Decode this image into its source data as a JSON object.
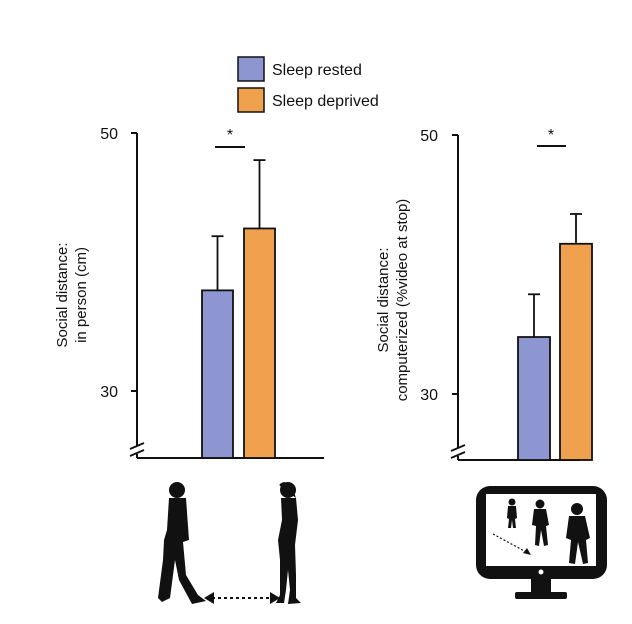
{
  "colors": {
    "sleep_rested": "#8E96D1",
    "sleep_deprived": "#F0A14D",
    "axis": "#111111",
    "icon": "#111111"
  },
  "legend": {
    "items": [
      {
        "label": "Sleep rested",
        "color": "#8E96D1"
      },
      {
        "label": "Sleep deprived",
        "color": "#F0A14D"
      }
    ],
    "placement": "top-center"
  },
  "chart_data": [
    {
      "type": "bar",
      "ylabel_line1": "Social distance:",
      "ylabel_line2": "in person (cm)",
      "yticks": [
        {
          "value": 50,
          "label": "50"
        },
        {
          "value": 30,
          "label": "30"
        }
      ],
      "ylim": [
        25,
        50
      ],
      "axis_break": true,
      "series": [
        {
          "name": "Sleep rested",
          "value": 37.8,
          "error": 4.2,
          "color": "#8E96D1"
        },
        {
          "name": "Sleep deprived",
          "value": 42.6,
          "error": 5.3,
          "color": "#F0A14D"
        }
      ],
      "significance": "*",
      "illustration_icons": [
        "walking-man-icon",
        "standing-woman-icon",
        "distance-arrow-icon"
      ]
    },
    {
      "type": "bar",
      "ylabel_line1": "Social distance:",
      "ylabel_line2": "computerized (%video at stop)",
      "yticks": [
        {
          "value": 50,
          "label": "50"
        },
        {
          "value": 30,
          "label": "30"
        }
      ],
      "ylim": [
        25,
        50
      ],
      "axis_break": true,
      "series": [
        {
          "name": "Sleep rested",
          "value": 34.4,
          "error": 3.3,
          "color": "#8E96D1"
        },
        {
          "name": "Sleep deprived",
          "value": 41.6,
          "error": 2.3,
          "color": "#F0A14D"
        }
      ],
      "significance": "*",
      "illustration_icons": [
        "computer-monitor-icon",
        "approaching-people-icon"
      ]
    }
  ]
}
